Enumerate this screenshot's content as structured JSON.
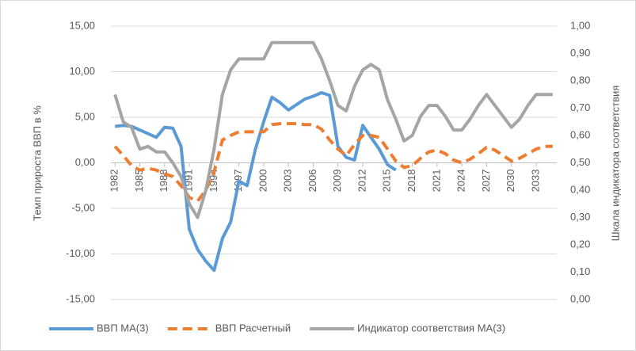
{
  "chart_data": {
    "type": "line",
    "y_label": "Темп прироста ВВП в %",
    "y2_label": "Шкала индикатора соответствия",
    "x": [
      1982,
      1983,
      1984,
      1985,
      1986,
      1987,
      1988,
      1989,
      1990,
      1991,
      1992,
      1993,
      1994,
      1995,
      1996,
      1997,
      1998,
      1999,
      2000,
      2001,
      2002,
      2003,
      2004,
      2005,
      2006,
      2007,
      2008,
      2009,
      2010,
      2011,
      2012,
      2013,
      2014,
      2015,
      2016,
      2017,
      2018,
      2019,
      2020,
      2021,
      2022,
      2023,
      2024,
      2025,
      2026,
      2027,
      2028,
      2029,
      2030,
      2031,
      2032,
      2033,
      2034,
      2035
    ],
    "xlim": [
      1981.5,
      2035.5
    ],
    "xticks": [
      1982,
      1985,
      1988,
      1991,
      1994,
      1997,
      2000,
      2003,
      2006,
      2009,
      2012,
      2015,
      2018,
      2021,
      2024,
      2027,
      2030,
      2033
    ],
    "ylim": [
      -15,
      15
    ],
    "yticks": [
      {
        "value": -15,
        "label": "-15,00"
      },
      {
        "value": -10,
        "label": "-10,00"
      },
      {
        "value": -5,
        "label": "-5,00"
      },
      {
        "value": 0,
        "label": "0,00"
      },
      {
        "value": 5,
        "label": "5,00"
      },
      {
        "value": 10,
        "label": "10,00"
      },
      {
        "value": 15,
        "label": "15,00"
      }
    ],
    "y2lim": [
      0,
      1
    ],
    "y2ticks": [
      {
        "value": 0,
        "label": "0,00"
      },
      {
        "value": 0.1,
        "label": "0,10"
      },
      {
        "value": 0.2,
        "label": "0,20"
      },
      {
        "value": 0.3,
        "label": "0,30"
      },
      {
        "value": 0.4,
        "label": "0,40"
      },
      {
        "value": 0.5,
        "label": "0,50"
      },
      {
        "value": 0.6,
        "label": "0,60"
      },
      {
        "value": 0.7,
        "label": "0,70"
      },
      {
        "value": 0.8,
        "label": "0,80"
      },
      {
        "value": 0.9,
        "label": "0,90"
      },
      {
        "value": 1,
        "label": "1,00"
      }
    ],
    "grid": true,
    "legend": "bottom",
    "series": [
      {
        "name": "ВВП МА(3)",
        "color": "#5b9bd5",
        "dash": false,
        "values": [
          4.0,
          4.1,
          4.0,
          3.6,
          3.2,
          2.8,
          3.9,
          3.8,
          1.8,
          -7.3,
          -9.5,
          -10.8,
          -11.8,
          -8.3,
          -6.5,
          -2.0,
          -2.5,
          1.5,
          4.5,
          7.2,
          6.6,
          5.8,
          6.4,
          7.0,
          7.3,
          7.7,
          7.4,
          1.8,
          0.6,
          0.3,
          4.1,
          2.8,
          1.5,
          -0.2,
          -0.8,
          null,
          null,
          null,
          null,
          null,
          null,
          null,
          null,
          null,
          null,
          null,
          null,
          null,
          null,
          null,
          null,
          null,
          null,
          null
        ]
      },
      {
        "name": "ВВП Расчетный",
        "color": "#ed7d31",
        "dash": true,
        "values": [
          1.8,
          0.8,
          -0.3,
          -0.8,
          -0.6,
          -0.8,
          -1.2,
          -1.5,
          -2.5,
          -3.8,
          -4.2,
          -3.0,
          -1.0,
          2.5,
          3.0,
          3.4,
          3.4,
          3.4,
          3.4,
          4.2,
          4.3,
          4.3,
          4.3,
          4.2,
          4.2,
          3.7,
          2.5,
          1.5,
          0.8,
          2.0,
          3.0,
          3.0,
          2.8,
          1.5,
          0.2,
          -0.5,
          -0.3,
          0.5,
          1.2,
          1.4,
          1.0,
          0.3,
          0.0,
          0.4,
          1.0,
          1.7,
          1.4,
          0.8,
          0.2,
          0.5,
          1.0,
          1.5,
          1.8,
          1.8
        ]
      },
      {
        "name": "Индикатор соответствия МА(3)",
        "color": "#a5a5a5",
        "dash": false,
        "axis": "y2",
        "values": [
          0.75,
          0.65,
          0.63,
          0.55,
          0.56,
          0.54,
          0.54,
          0.5,
          0.45,
          0.35,
          0.3,
          0.4,
          0.55,
          0.75,
          0.84,
          0.88,
          0.88,
          0.88,
          0.88,
          0.94,
          0.94,
          0.94,
          0.94,
          0.94,
          0.94,
          0.88,
          0.8,
          0.71,
          0.69,
          0.78,
          0.84,
          0.86,
          0.84,
          0.73,
          0.66,
          0.58,
          0.6,
          0.67,
          0.71,
          0.71,
          0.67,
          0.62,
          0.62,
          0.66,
          0.71,
          0.75,
          0.71,
          0.67,
          0.63,
          0.66,
          0.71,
          0.75,
          0.75,
          0.75
        ]
      }
    ]
  }
}
